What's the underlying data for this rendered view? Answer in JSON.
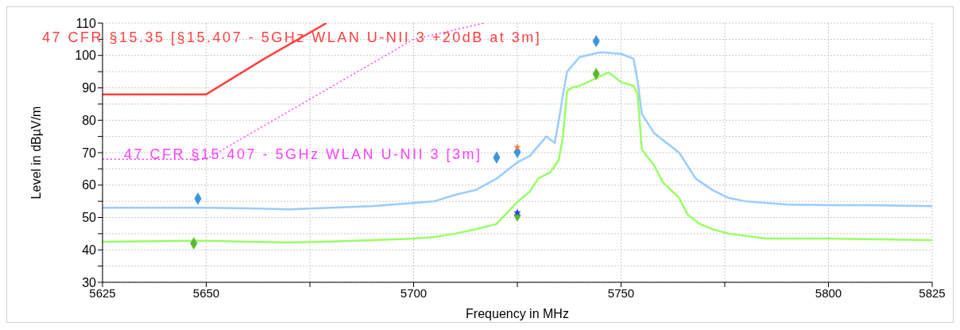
{
  "chart_data": {
    "type": "line",
    "xlabel": "Frequency in MHz",
    "ylabel": "Level in dBµV/m",
    "xlim": [
      5625,
      5825
    ],
    "ylim": [
      30,
      110
    ],
    "xticks": [
      5625,
      5650,
      {
        "value": 5675,
        "label": null
      },
      5700,
      {
        "value": 5725,
        "label": null
      },
      5750,
      {
        "value": 5775,
        "label": null
      },
      5800,
      5825
    ],
    "yticks": [
      30,
      {
        "value": 35,
        "label": null
      },
      40,
      {
        "value": 45,
        "label": null
      },
      50,
      {
        "value": 55,
        "label": null
      },
      60,
      {
        "value": 65,
        "label": null
      },
      70,
      {
        "value": 75,
        "label": null
      },
      80,
      {
        "value": 85,
        "label": null
      },
      90,
      {
        "value": 95,
        "label": null
      },
      100,
      {
        "value": 105,
        "label": null
      },
      110
    ],
    "grid": true,
    "marker": "none",
    "series": [
      {
        "name": "47 CFR §15.35 [§15.407 - 5GHz WLAN U-NII 3 +20dB at 3m]",
        "color": "#ff4040",
        "line_style": "solid",
        "x": [
          5625,
          5650,
          5664,
          5679
        ],
        "values": [
          88,
          88,
          99,
          110
        ]
      },
      {
        "name": "47 CFR §15.407 - 5GHz WLAN U-NII 3 [3m]",
        "color": "#ff40ff",
        "line_style": "dotted",
        "x": [
          5625,
          5650,
          5700,
          5717
        ],
        "values": [
          68,
          68,
          105,
          110
        ]
      },
      {
        "color": "#99ccff",
        "line_style": "solid",
        "x": [
          5625,
          5640,
          5650,
          5660,
          5670,
          5680,
          5690,
          5700,
          5705,
          5710,
          5715,
          5720,
          5725,
          5728,
          5730,
          5732,
          5734,
          5735,
          5736,
          5737,
          5740,
          5745,
          5750,
          5753,
          5754,
          5755,
          5758,
          5760,
          5762,
          5764,
          5766,
          5768,
          5772,
          5776,
          5780,
          5790,
          5800,
          5810,
          5825
        ],
        "values": [
          53,
          53,
          53,
          52.8,
          52.5,
          53,
          53.5,
          54.5,
          55,
          57,
          58.5,
          62,
          67,
          69,
          72,
          75,
          73,
          80,
          88,
          95,
          99.5,
          101,
          100.5,
          99,
          92,
          82,
          76,
          74,
          72,
          70,
          66,
          62,
          58.5,
          56,
          55,
          54,
          53.8,
          53.8,
          53.5
        ]
      },
      {
        "color": "#99ff66",
        "line_style": "solid",
        "x": [
          5625,
          5650,
          5660,
          5670,
          5680,
          5690,
          5700,
          5705,
          5710,
          5715,
          5720,
          5725,
          5728,
          5730,
          5733,
          5735,
          5736,
          5737,
          5738,
          5740,
          5745,
          5747,
          5750,
          5753,
          5754,
          5755,
          5758,
          5760,
          5764,
          5766,
          5769,
          5772,
          5776,
          5785,
          5800,
          5825
        ],
        "values": [
          42.5,
          42.8,
          42.5,
          42.3,
          42.6,
          43,
          43.5,
          44,
          45,
          46.4,
          48,
          54.8,
          58,
          62,
          64,
          67.8,
          75,
          89,
          90,
          90.6,
          93.6,
          94.8,
          91.8,
          90.6,
          88,
          71,
          66,
          61,
          56,
          51,
          48,
          46.4,
          45,
          43.5,
          43.5,
          43
        ]
      },
      {
        "type": "scatter",
        "color": "#3a96dd",
        "marker": "diamond",
        "x": [
          5648,
          5720,
          5725,
          5744
        ],
        "values": [
          55.8,
          68.5,
          70.2,
          104.4
        ]
      },
      {
        "type": "scatter",
        "color": "#5cb82e",
        "marker": "diamond",
        "x": [
          5647,
          5725,
          5744
        ],
        "values": [
          42,
          50.6,
          94.3
        ]
      },
      {
        "type": "scatter",
        "color": "#ff8040",
        "marker": "star",
        "x": [
          5725
        ],
        "values": [
          71.7
        ]
      },
      {
        "type": "scatter",
        "color": "#2040ff",
        "marker": "star",
        "x": [
          5725
        ],
        "values": [
          51.5
        ]
      }
    ]
  }
}
